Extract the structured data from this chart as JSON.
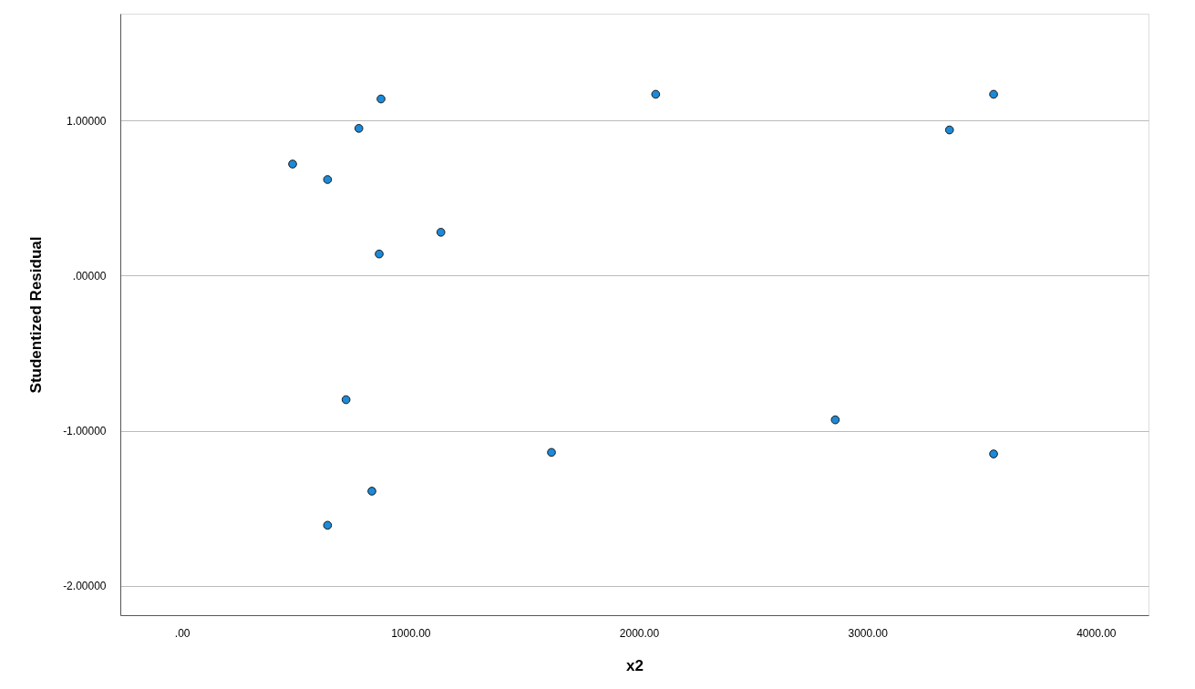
{
  "chart_data": {
    "type": "scatter",
    "xlabel": "x2",
    "ylabel": "Studentized Residual",
    "x": [
      484,
      637,
      774,
      871,
      863,
      1133,
      2073,
      3359,
      3552,
      718,
      1617,
      2859,
      3552,
      831,
      637
    ],
    "series": [
      {
        "color": "#1c8ad8",
        "values": [
          0.72,
          0.62,
          0.95,
          1.14,
          0.14,
          0.28,
          1.17,
          0.94,
          1.17,
          -0.8,
          -1.14,
          -0.93,
          -1.15,
          -1.39,
          -1.61
        ]
      }
    ],
    "xlim": [
      -270,
      4230
    ],
    "ylim": [
      -2.19,
      1.69
    ],
    "xticks": [
      {
        "value": 0,
        "label": ".00"
      },
      {
        "value": 1000,
        "label": "1000.00"
      },
      {
        "value": 2000,
        "label": "2000.00"
      },
      {
        "value": 3000,
        "label": "3000.00"
      },
      {
        "value": 4000,
        "label": "4000.00"
      }
    ],
    "yticks": [
      {
        "value": -2,
        "label": "-2.00000"
      },
      {
        "value": -1,
        "label": "-1.00000"
      },
      {
        "value": 0,
        "label": ".00000"
      },
      {
        "value": 1,
        "label": "1.00000"
      }
    ],
    "grid": "y",
    "marker": "circle"
  }
}
